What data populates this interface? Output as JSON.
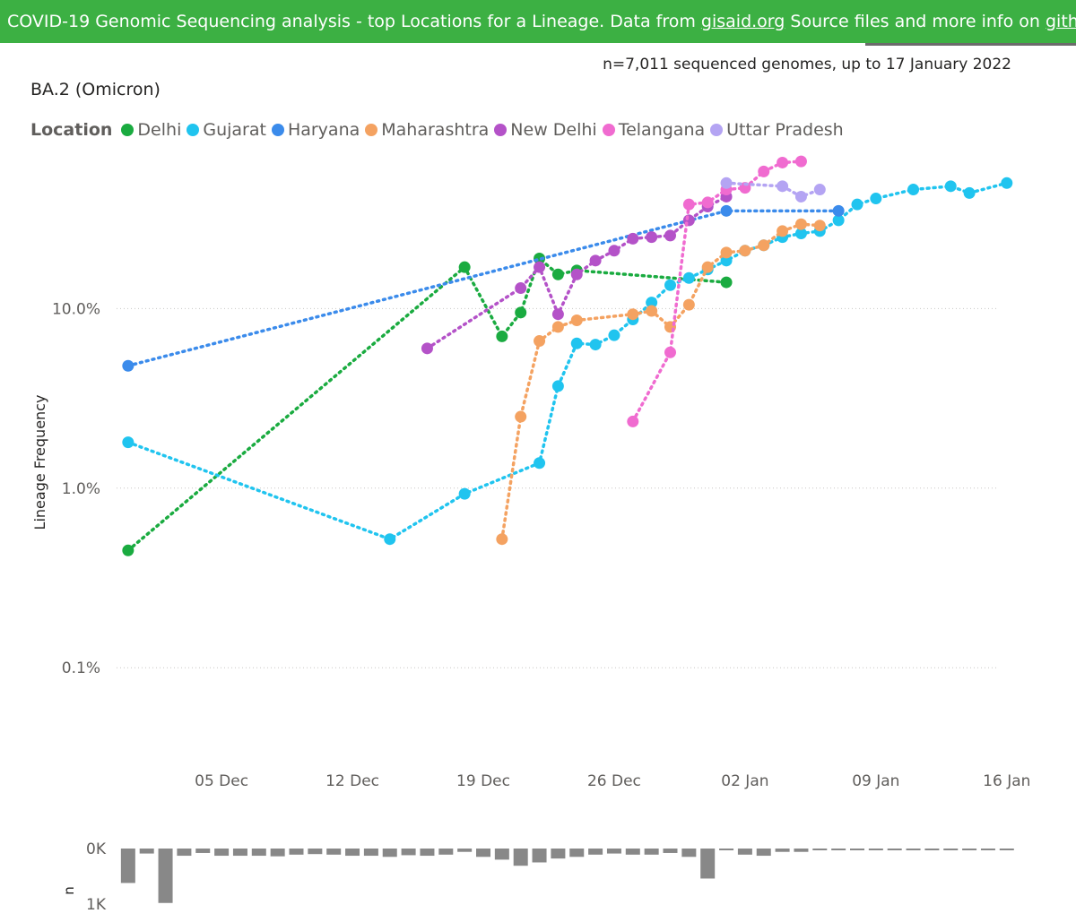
{
  "banner": {
    "text_before": "COVID-19 Genomic Sequencing analysis - top Locations for a Lineage. Data from ",
    "gisaid_link": "gisaid.org",
    "text_middle": " Source files and more info on ",
    "github_link": "github",
    "text_after": ".",
    "background": "#3cb043"
  },
  "subtitle": "n=7,011 sequenced genomes, up to 17 January 2022",
  "chart_data": [
    {
      "type": "line",
      "title": "BA.2 (Omicron)",
      "xlabel": "",
      "ylabel": "Lineage Frequency",
      "yscale": "log",
      "ylim": [
        0.0003,
        0.7
      ],
      "xlim": [
        "2021-11-29",
        "2022-01-17"
      ],
      "xticks": [
        {
          "date": "2021-12-05",
          "label": "05 Dec"
        },
        {
          "date": "2021-12-12",
          "label": "12 Dec"
        },
        {
          "date": "2021-12-19",
          "label": "19 Dec"
        },
        {
          "date": "2021-12-26",
          "label": "26 Dec"
        },
        {
          "date": "2022-01-02",
          "label": "02 Jan"
        },
        {
          "date": "2022-01-09",
          "label": "09 Jan"
        },
        {
          "date": "2022-01-16",
          "label": "16 Jan"
        }
      ],
      "yticks": [
        {
          "value": 0.1,
          "label": "10.0%"
        },
        {
          "value": 0.01,
          "label": "1.0%"
        },
        {
          "value": 0.001,
          "label": "0.1%"
        }
      ],
      "grid": true,
      "legend_title": "Location",
      "legend_position": "top-left",
      "series": [
        {
          "name": "Delhi",
          "color": "#1aab40",
          "points": [
            [
              "2021-11-30",
              0.0045
            ],
            [
              "2021-12-18",
              0.17
            ],
            [
              "2021-12-20",
              0.07
            ],
            [
              "2021-12-21",
              0.095
            ],
            [
              "2021-12-22",
              0.19
            ],
            [
              "2021-12-23",
              0.155
            ],
            [
              "2021-12-24",
              0.163
            ],
            [
              "2022-01-01",
              0.14
            ]
          ]
        },
        {
          "name": "Gujarat",
          "color": "#20c4ef",
          "points": [
            [
              "2021-11-30",
              0.018
            ],
            [
              "2021-12-14",
              0.0052
            ],
            [
              "2021-12-18",
              0.0093
            ],
            [
              "2021-12-22",
              0.0138
            ],
            [
              "2021-12-23",
              0.037
            ],
            [
              "2021-12-24",
              0.064
            ],
            [
              "2021-12-25",
              0.063
            ],
            [
              "2021-12-26",
              0.071
            ],
            [
              "2021-12-27",
              0.087
            ],
            [
              "2021-12-28",
              0.108
            ],
            [
              "2021-12-29",
              0.135
            ],
            [
              "2021-12-30",
              0.148
            ],
            [
              "2021-12-31",
              0.165
            ],
            [
              "2022-01-01",
              0.185
            ],
            [
              "2022-01-02",
              0.21
            ],
            [
              "2022-01-03",
              0.225
            ],
            [
              "2022-01-04",
              0.25
            ],
            [
              "2022-01-05",
              0.262
            ],
            [
              "2022-01-06",
              0.27
            ],
            [
              "2022-01-07",
              0.31
            ],
            [
              "2022-01-08",
              0.38
            ],
            [
              "2022-01-09",
              0.41
            ],
            [
              "2022-01-11",
              0.46
            ],
            [
              "2022-01-13",
              0.48
            ],
            [
              "2022-01-14",
              0.44
            ],
            [
              "2022-01-16",
              0.5
            ]
          ]
        },
        {
          "name": "Haryana",
          "color": "#3b8beb",
          "points": [
            [
              "2021-11-30",
              0.048
            ],
            [
              "2022-01-01",
              0.35
            ],
            [
              "2022-01-07",
              0.35
            ]
          ]
        },
        {
          "name": "Maharashtra",
          "color": "#f4a261",
          "points": [
            [
              "2021-12-20",
              0.0052
            ],
            [
              "2021-12-21",
              0.025
            ],
            [
              "2021-12-22",
              0.066
            ],
            [
              "2021-12-23",
              0.079
            ],
            [
              "2021-12-24",
              0.086
            ],
            [
              "2021-12-27",
              0.093
            ],
            [
              "2021-12-28",
              0.097
            ],
            [
              "2021-12-29",
              0.079
            ],
            [
              "2021-12-30",
              0.105
            ],
            [
              "2021-12-31",
              0.17
            ],
            [
              "2022-01-01",
              0.205
            ],
            [
              "2022-01-02",
              0.21
            ],
            [
              "2022-01-03",
              0.225
            ],
            [
              "2022-01-04",
              0.27
            ],
            [
              "2022-01-05",
              0.295
            ],
            [
              "2022-01-06",
              0.29
            ]
          ]
        },
        {
          "name": "New Delhi",
          "color": "#b452c8",
          "points": [
            [
              "2021-12-16",
              0.06
            ],
            [
              "2021-12-21",
              0.13
            ],
            [
              "2021-12-22",
              0.17
            ],
            [
              "2021-12-23",
              0.093
            ],
            [
              "2021-12-24",
              0.155
            ],
            [
              "2021-12-25",
              0.185
            ],
            [
              "2021-12-26",
              0.21
            ],
            [
              "2021-12-27",
              0.245
            ],
            [
              "2021-12-28",
              0.25
            ],
            [
              "2021-12-29",
              0.255
            ],
            [
              "2021-12-30",
              0.31
            ],
            [
              "2021-12-31",
              0.37
            ],
            [
              "2022-01-01",
              0.42
            ]
          ]
        },
        {
          "name": "Telangana",
          "color": "#f06bd0",
          "points": [
            [
              "2021-12-27",
              0.0235
            ],
            [
              "2021-12-29",
              0.057
            ],
            [
              "2021-12-30",
              0.38
            ],
            [
              "2021-12-31",
              0.39
            ],
            [
              "2022-01-01",
              0.46
            ],
            [
              "2022-01-02",
              0.47
            ],
            [
              "2022-01-03",
              0.58
            ],
            [
              "2022-01-04",
              0.65
            ],
            [
              "2022-01-05",
              0.66
            ]
          ]
        },
        {
          "name": "Uttar Pradesh",
          "color": "#b4a4f3",
          "points": [
            [
              "2022-01-01",
              0.5
            ],
            [
              "2022-01-04",
              0.48
            ],
            [
              "2022-01-05",
              0.42
            ],
            [
              "2022-01-06",
              0.46
            ]
          ]
        }
      ]
    },
    {
      "type": "bar",
      "title": "",
      "ylabel": "n",
      "ylim": [
        0,
        1000
      ],
      "yticks": [
        {
          "value": 0,
          "label": "0K"
        },
        {
          "value": 1000,
          "label": "1K"
        }
      ],
      "color": "#888888",
      "x": [
        "2021-11-30",
        "2021-12-01",
        "2021-12-02",
        "2021-12-03",
        "2021-12-04",
        "2021-12-05",
        "2021-12-06",
        "2021-12-07",
        "2021-12-08",
        "2021-12-09",
        "2021-12-10",
        "2021-12-11",
        "2021-12-12",
        "2021-12-13",
        "2021-12-14",
        "2021-12-15",
        "2021-12-16",
        "2021-12-17",
        "2021-12-18",
        "2021-12-19",
        "2021-12-20",
        "2021-12-21",
        "2021-12-22",
        "2021-12-23",
        "2021-12-24",
        "2021-12-25",
        "2021-12-26",
        "2021-12-27",
        "2021-12-28",
        "2021-12-29",
        "2021-12-30",
        "2021-12-31",
        "2022-01-01",
        "2022-01-02",
        "2022-01-03",
        "2022-01-04",
        "2022-01-05",
        "2022-01-06",
        "2022-01-07",
        "2022-01-08",
        "2022-01-09",
        "2022-01-10",
        "2022-01-11",
        "2022-01-12",
        "2022-01-13",
        "2022-01-14",
        "2022-01-15",
        "2022-01-16"
      ],
      "values": [
        620,
        90,
        980,
        130,
        80,
        130,
        130,
        130,
        140,
        110,
        100,
        110,
        130,
        130,
        150,
        120,
        130,
        110,
        60,
        150,
        200,
        310,
        250,
        180,
        150,
        110,
        90,
        110,
        110,
        80,
        150,
        540,
        20,
        110,
        130,
        60,
        60,
        25,
        20,
        20,
        15,
        15,
        15,
        15,
        15,
        20,
        10,
        15
      ]
    }
  ]
}
